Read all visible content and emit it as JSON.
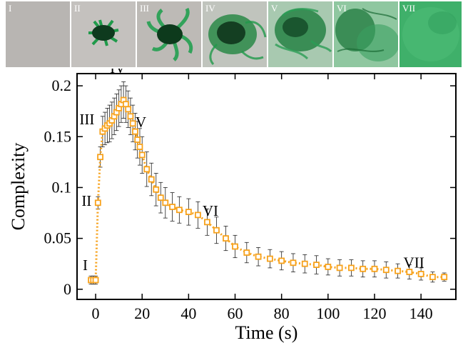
{
  "panels": [
    {
      "label": "I"
    },
    {
      "label": "II"
    },
    {
      "label": "III"
    },
    {
      "label": "IV"
    },
    {
      "label": "V"
    },
    {
      "label": "VI"
    },
    {
      "label": "VII"
    }
  ],
  "colors": {
    "series": "#f7a21c",
    "error_bars": "#222222",
    "dye": "#1f9a4a",
    "background_gray": "#b9b6b3"
  },
  "chart_data": {
    "type": "line",
    "xlabel": "Time (s)",
    "ylabel": "Complexity",
    "xlim": [
      -8,
      155
    ],
    "ylim": [
      -0.01,
      0.212
    ],
    "xticks": [
      0,
      20,
      40,
      60,
      80,
      100,
      120,
      140
    ],
    "yticks": [
      0,
      0.05,
      0.1,
      0.15,
      0.2
    ],
    "xtick_labels": [
      "0",
      "20",
      "40",
      "60",
      "80",
      "100",
      "120",
      "140"
    ],
    "ytick_labels": [
      "0",
      "0.05",
      "0.1",
      "0.15",
      "0.2"
    ],
    "grid": false,
    "annotations": [
      {
        "label": "I",
        "x": -2,
        "y": 0.009
      },
      {
        "label": "II",
        "x": 1,
        "y": 0.085
      },
      {
        "label": "III",
        "x": 3,
        "y": 0.158
      },
      {
        "label": "IV",
        "x": 12,
        "y": 0.186
      },
      {
        "label": "V",
        "x": 17,
        "y": 0.158
      },
      {
        "label": "VI",
        "x": 50,
        "y": 0.065
      },
      {
        "label": "VII",
        "x": 140,
        "y": 0.013
      }
    ],
    "series": [
      {
        "x": [
          -2,
          -1,
          0,
          1,
          2,
          3,
          4,
          5,
          6,
          7,
          8,
          9,
          10,
          11,
          12,
          13,
          14,
          15,
          16,
          17,
          18,
          19,
          20,
          22,
          24,
          26,
          28,
          30,
          33,
          36,
          40,
          44,
          48,
          52,
          56,
          60,
          65,
          70,
          75,
          80,
          85,
          90,
          95,
          100,
          105,
          110,
          115,
          120,
          125,
          130,
          135,
          140,
          145,
          150
        ],
        "y": [
          0.009,
          0.009,
          0.009,
          0.085,
          0.13,
          0.155,
          0.158,
          0.161,
          0.163,
          0.166,
          0.17,
          0.174,
          0.178,
          0.182,
          0.186,
          0.182,
          0.177,
          0.17,
          0.163,
          0.155,
          0.147,
          0.14,
          0.132,
          0.118,
          0.108,
          0.098,
          0.09,
          0.085,
          0.081,
          0.078,
          0.076,
          0.073,
          0.066,
          0.058,
          0.05,
          0.042,
          0.036,
          0.032,
          0.03,
          0.028,
          0.026,
          0.025,
          0.024,
          0.022,
          0.021,
          0.021,
          0.02,
          0.02,
          0.019,
          0.018,
          0.017,
          0.015,
          0.012,
          0.012
        ],
        "err": [
          0.004,
          0.004,
          0.004,
          0.006,
          0.01,
          0.015,
          0.016,
          0.017,
          0.018,
          0.018,
          0.018,
          0.018,
          0.018,
          0.018,
          0.018,
          0.018,
          0.018,
          0.018,
          0.018,
          0.018,
          0.018,
          0.018,
          0.018,
          0.017,
          0.016,
          0.016,
          0.015,
          0.015,
          0.014,
          0.013,
          0.013,
          0.013,
          0.013,
          0.013,
          0.012,
          0.011,
          0.01,
          0.009,
          0.009,
          0.009,
          0.009,
          0.009,
          0.009,
          0.008,
          0.008,
          0.008,
          0.008,
          0.008,
          0.008,
          0.007,
          0.007,
          0.006,
          0.005,
          0.004
        ]
      }
    ]
  }
}
